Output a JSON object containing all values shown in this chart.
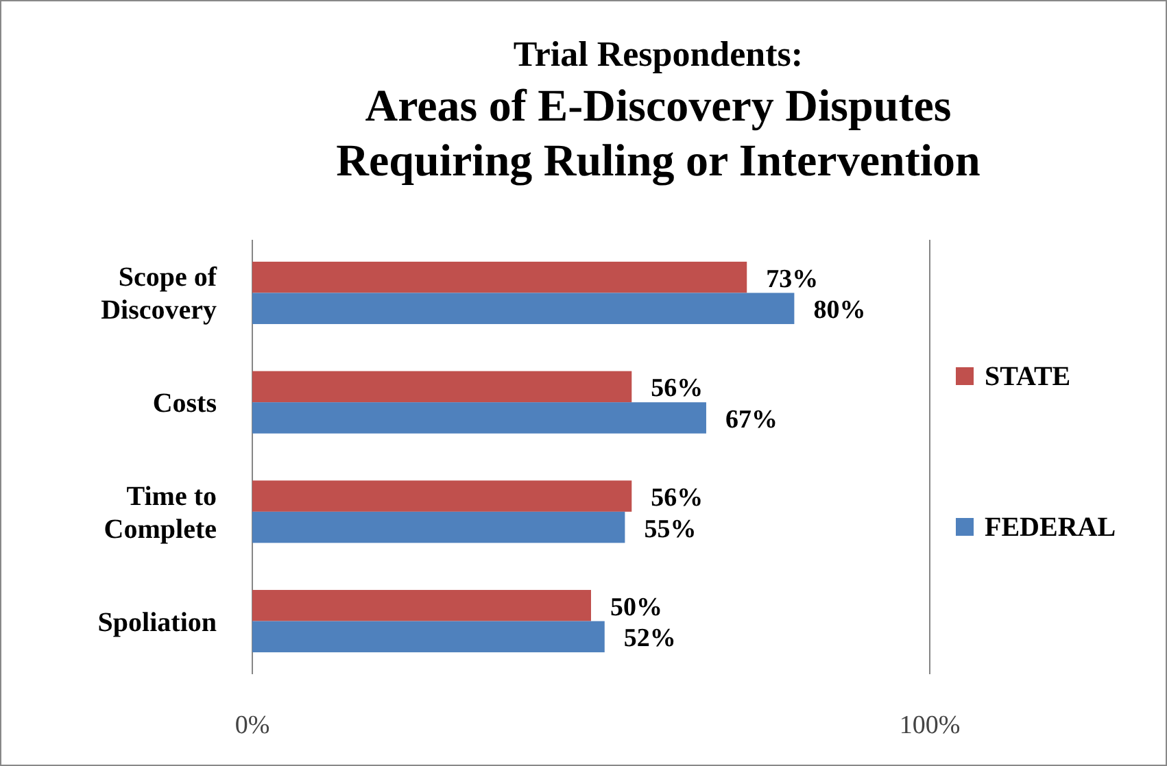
{
  "chart_data": {
    "type": "bar",
    "orientation": "horizontal",
    "title": "Trial Respondents:",
    "subtitle": "Areas of  E-Discovery Disputes Requiring Ruling or Intervention",
    "categories": [
      "Scope of Discovery",
      "Costs",
      "Time to Complete",
      "Spoliation"
    ],
    "series": [
      {
        "name": "STATE",
        "color": "#c0504d",
        "values": [
          73,
          56,
          56,
          50
        ],
        "value_labels": [
          "73%",
          "56%",
          "56%",
          "50%"
        ]
      },
      {
        "name": "FEDERAL",
        "color": "#4f81bd",
        "values": [
          80,
          67,
          55,
          52
        ],
        "value_labels": [
          "80%",
          "67%",
          "55%",
          "52%"
        ]
      }
    ],
    "xlim": [
      0,
      100
    ],
    "xticks": [
      {
        "value": 0,
        "label": "0%"
      },
      {
        "value": 100,
        "label": "100%"
      }
    ],
    "legend": "right"
  }
}
